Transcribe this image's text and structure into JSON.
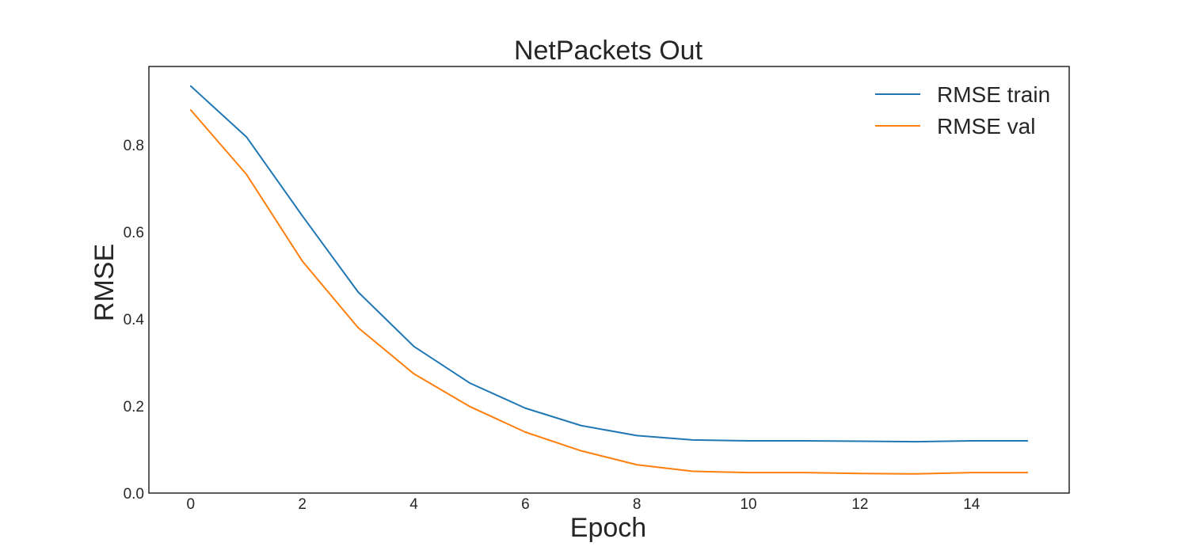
{
  "chart_data": {
    "type": "line",
    "title": "NetPackets Out",
    "xlabel": "Epoch",
    "ylabel": "RMSE",
    "xlim": [
      -0.75,
      15.75
    ],
    "ylim": [
      0.0,
      0.98
    ],
    "xticks": [
      0,
      2,
      4,
      6,
      8,
      10,
      12,
      14
    ],
    "xtick_labels": [
      "0",
      "2",
      "4",
      "6",
      "8",
      "10",
      "12",
      "14"
    ],
    "yticks": [
      0.0,
      0.2,
      0.4,
      0.6,
      0.8
    ],
    "ytick_labels": [
      "0.0",
      "0.2",
      "0.4",
      "0.6",
      "0.8"
    ],
    "grid": false,
    "legend_position": "top-right",
    "x": [
      0,
      1,
      2,
      3,
      4,
      5,
      6,
      7,
      8,
      9,
      10,
      11,
      12,
      13,
      14,
      15
    ],
    "series": [
      {
        "name": "RMSE train",
        "color": "#1f77b4",
        "values": [
          0.935,
          0.818,
          0.637,
          0.462,
          0.337,
          0.253,
          0.195,
          0.155,
          0.132,
          0.122,
          0.12,
          0.12,
          0.119,
          0.118,
          0.12,
          0.12
        ]
      },
      {
        "name": "RMSE val",
        "color": "#ff7f0e",
        "values": [
          0.88,
          0.732,
          0.533,
          0.38,
          0.274,
          0.199,
          0.14,
          0.097,
          0.065,
          0.05,
          0.047,
          0.047,
          0.045,
          0.044,
          0.047,
          0.047
        ]
      }
    ]
  }
}
